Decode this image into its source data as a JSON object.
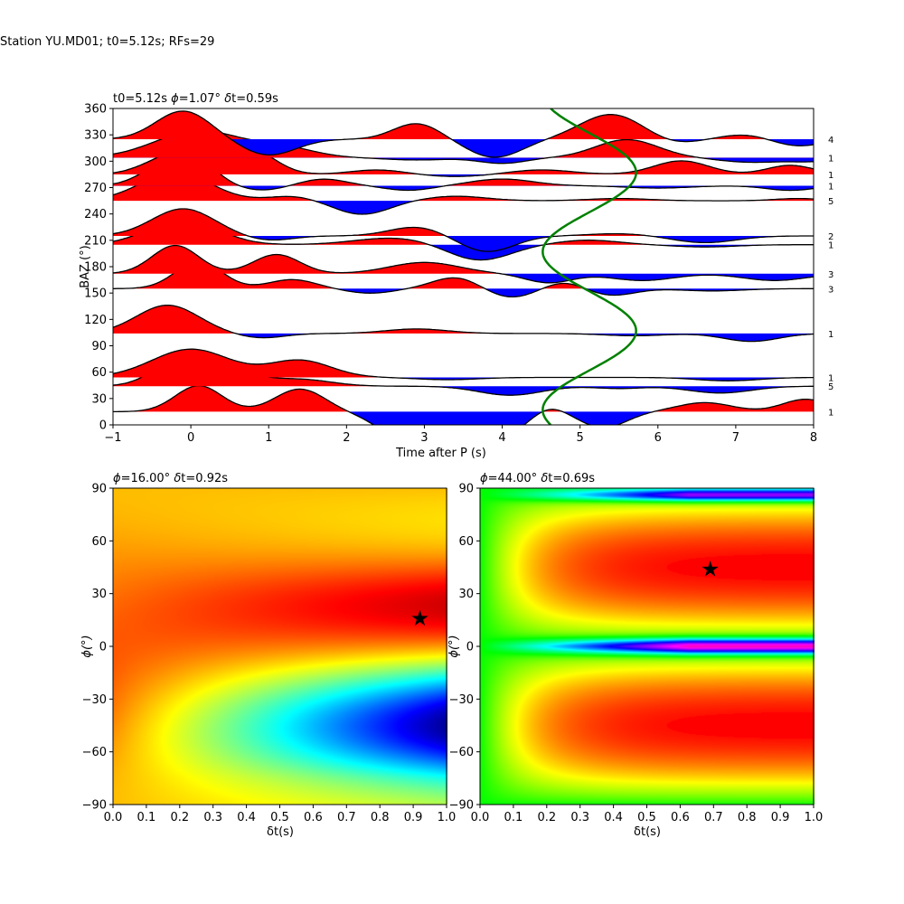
{
  "figure": {
    "suptitle": "Station YU.MD01; t0=5.12s; RFs=29"
  },
  "chart_data": [
    {
      "type": "line",
      "panel": "receiver-function-traces",
      "title_parts": {
        "pre": "t0=5.12s ",
        "phi_symbol": "ϕ",
        "phi_value": "=1.07° ",
        "delta_symbol": "δ",
        "dt_value": "t=0.59s"
      },
      "xlabel": "Time after P (s)",
      "ylabel": "BAZ (°)",
      "xlim": [
        -1,
        8
      ],
      "ylim": [
        0,
        360
      ],
      "xticks": [
        -1,
        0,
        1,
        2,
        3,
        4,
        5,
        6,
        7,
        8
      ],
      "yticks": [
        0,
        30,
        60,
        90,
        120,
        150,
        180,
        210,
        240,
        270,
        300,
        330,
        360
      ],
      "fill_positive_color": "#ff0000",
      "fill_negative_color": "#0000ff",
      "curve_color": "#008000",
      "traces": [
        {
          "baz": 15,
          "count": "1",
          "amp": 25,
          "peaks": [
            [
              0.1,
              1.15,
              0.3
            ],
            [
              1.4,
              1.0,
              0.32
            ],
            [
              2.9,
              -1.55,
              0.4
            ],
            [
              3.9,
              -1.2,
              0.35
            ],
            [
              4.6,
              0.3,
              0.2
            ],
            [
              5.3,
              -0.7,
              0.3
            ],
            [
              6.6,
              0.4,
              0.35
            ],
            [
              7.9,
              0.55,
              0.3
            ]
          ]
        },
        {
          "baz": 44,
          "count": "5",
          "amp": 25,
          "peaks": [
            [
              -0.1,
              1.25,
              0.35
            ],
            [
              0.5,
              0.6,
              0.35
            ],
            [
              1.4,
              0.3,
              0.4
            ],
            [
              4.1,
              -0.4,
              0.4
            ],
            [
              5.5,
              -0.1,
              0.3
            ],
            [
              6.8,
              -0.3,
              0.4
            ]
          ]
        },
        {
          "baz": 54,
          "count": "1",
          "amp": 25,
          "peaks": [
            [
              0.0,
              1.25,
              0.5
            ],
            [
              1.4,
              0.75,
              0.4
            ],
            [
              3.3,
              -0.1,
              0.4
            ],
            [
              6.9,
              -0.15,
              0.4
            ]
          ]
        },
        {
          "baz": 104,
          "count": "1",
          "amp": 25,
          "peaks": [
            [
              -0.3,
              1.25,
              0.4
            ],
            [
              0.9,
              -0.2,
              0.3
            ],
            [
              2.9,
              0.2,
              0.4
            ],
            [
              5.7,
              -0.1,
              0.4
            ],
            [
              7.2,
              -0.35,
              0.35
            ]
          ]
        },
        {
          "baz": 155,
          "count": "3",
          "amp": 25,
          "peaks": [
            [
              0.1,
              1.2,
              0.3
            ],
            [
              1.3,
              0.4,
              0.3
            ],
            [
              2.3,
              -0.2,
              0.3
            ],
            [
              3.4,
              0.5,
              0.3
            ],
            [
              4.1,
              -0.4,
              0.3
            ],
            [
              4.8,
              0.3,
              0.25
            ],
            [
              5.4,
              -0.3,
              0.3
            ],
            [
              6.7,
              -0.1,
              0.4
            ]
          ]
        },
        {
          "baz": 172,
          "count": "3",
          "amp": 25,
          "peaks": [
            [
              -0.2,
              1.25,
              0.3
            ],
            [
              1.1,
              0.85,
              0.3
            ],
            [
              3.0,
              0.5,
              0.45
            ],
            [
              4.6,
              -0.4,
              0.3
            ],
            [
              5.8,
              -0.3,
              0.4
            ],
            [
              7.5,
              -0.3,
              0.4
            ]
          ]
        },
        {
          "baz": 205,
          "count": "1",
          "amp": 25,
          "peaks": [
            [
              -0.1,
              1.1,
              0.45
            ],
            [
              2.6,
              0.3,
              0.5
            ],
            [
              3.7,
              -0.7,
              0.4
            ],
            [
              5.1,
              0.2,
              0.4
            ],
            [
              6.6,
              -0.1,
              0.4
            ]
          ]
        },
        {
          "baz": 215,
          "count": "2",
          "amp": 25,
          "peaks": [
            [
              -0.1,
              1.2,
              0.4
            ],
            [
              1.0,
              -0.2,
              0.3
            ],
            [
              2.9,
              0.4,
              0.35
            ],
            [
              3.8,
              -0.7,
              0.35
            ],
            [
              5.5,
              0.1,
              0.4
            ],
            [
              6.6,
              -0.3,
              0.4
            ]
          ]
        },
        {
          "baz": 255,
          "count": "5",
          "amp": 25,
          "peaks": [
            [
              -0.2,
              1.25,
              0.45
            ],
            [
              1.3,
              0.2,
              0.3
            ],
            [
              2.2,
              -0.6,
              0.35
            ],
            [
              3.4,
              0.2,
              0.4
            ],
            [
              5.5,
              0.1,
              0.4
            ],
            [
              7.8,
              0.1,
              0.3
            ]
          ]
        },
        {
          "baz": 272,
          "count": "1",
          "amp": 25,
          "peaks": [
            [
              -0.4,
              0.6,
              0.3
            ],
            [
              0.0,
              1.2,
              0.3
            ],
            [
              0.9,
              -0.2,
              0.3
            ],
            [
              1.7,
              0.3,
              0.3
            ],
            [
              2.8,
              -0.2,
              0.3
            ],
            [
              4.0,
              0.3,
              0.4
            ],
            [
              6.0,
              -0.1,
              0.4
            ],
            [
              7.7,
              -0.2,
              0.3
            ]
          ]
        },
        {
          "baz": 285,
          "count": "1",
          "amp": 25,
          "peaks": [
            [
              -0.4,
              0.5,
              0.3
            ],
            [
              0.1,
              1.2,
              0.3
            ],
            [
              0.8,
              1.0,
              0.3
            ],
            [
              2.4,
              0.2,
              0.35
            ],
            [
              3.4,
              -0.1,
              0.4
            ],
            [
              4.5,
              0.2,
              0.4
            ],
            [
              6.3,
              0.6,
              0.35
            ],
            [
              7.7,
              0.4,
              0.3
            ]
          ]
        },
        {
          "baz": 304,
          "count": "1",
          "amp": 25,
          "peaks": [
            [
              0.1,
              1.2,
              0.55
            ],
            [
              1.2,
              0.4,
              0.4
            ],
            [
              2.9,
              -0.1,
              0.4
            ],
            [
              4.0,
              -0.25,
              0.3
            ],
            [
              5.6,
              0.8,
              0.4
            ],
            [
              7.2,
              -0.2,
              0.4
            ],
            [
              8.0,
              -0.15,
              0.3
            ]
          ]
        },
        {
          "baz": 325,
          "count": "4",
          "amp": 25,
          "peaks": [
            [
              -0.1,
              1.25,
              0.35
            ],
            [
              1.0,
              -0.7,
              0.35
            ],
            [
              2.9,
              0.7,
              0.3
            ],
            [
              3.9,
              -0.8,
              0.35
            ],
            [
              5.4,
              1.1,
              0.4
            ],
            [
              6.2,
              -0.2,
              0.3
            ],
            [
              7.1,
              0.2,
              0.3
            ],
            [
              7.8,
              -0.3,
              0.3
            ]
          ]
        }
      ],
      "curve": {
        "center_x": 5.12,
        "amplitude": 0.6,
        "period_deg": 180,
        "phase_deg": 107
      }
    },
    {
      "type": "heatmap",
      "panel": "energy-grid-left",
      "title_parts": {
        "phi_symbol": "ϕ",
        "phi_value": "=16.00° ",
        "delta_symbol": "δ",
        "dt_value": "t=0.92s"
      },
      "xlabel": "δt(s)",
      "ylabel": "ϕ(°)",
      "xlim": [
        0,
        1
      ],
      "ylim": [
        -90,
        90
      ],
      "xticks": [
        "0.0",
        "0.1",
        "0.2",
        "0.3",
        "0.4",
        "0.5",
        "0.6",
        "0.7",
        "0.8",
        "0.9",
        "1.0"
      ],
      "yticks": [
        -90,
        -60,
        -30,
        0,
        30,
        60,
        90
      ],
      "colormap": "jet",
      "best": {
        "dt": 0.92,
        "phi": 16
      }
    },
    {
      "type": "heatmap",
      "panel": "energy-grid-right",
      "title_parts": {
        "phi_symbol": "ϕ",
        "phi_value": "=44.00° ",
        "delta_symbol": "δ",
        "dt_value": "t=0.69s"
      },
      "xlabel": "δt(s)",
      "ylabel": "ϕ(°)",
      "xlim": [
        0,
        1
      ],
      "ylim": [
        -90,
        90
      ],
      "xticks": [
        "0.0",
        "0.1",
        "0.2",
        "0.3",
        "0.4",
        "0.5",
        "0.6",
        "0.7",
        "0.8",
        "0.9",
        "1.0"
      ],
      "yticks": [
        -90,
        -60,
        -30,
        0,
        30,
        60,
        90
      ],
      "colormap": "hsv",
      "best": {
        "dt": 0.69,
        "phi": 44
      }
    }
  ]
}
